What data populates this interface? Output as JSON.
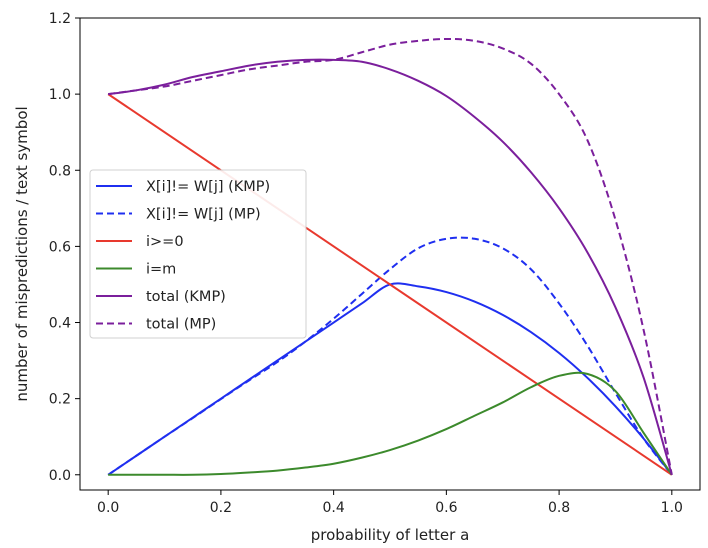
{
  "chart_data": {
    "type": "line",
    "title": "",
    "xlabel": "probability of letter a",
    "ylabel": "number of mispredictions / text symbol",
    "xlim": [
      -0.05,
      1.05
    ],
    "ylim": [
      -0.04,
      1.2
    ],
    "xticks": [
      0.0,
      0.2,
      0.4,
      0.6,
      0.8,
      1.0
    ],
    "xtick_labels": [
      "0.0",
      "0.2",
      "0.4",
      "0.6",
      "0.8",
      "1.0"
    ],
    "yticks": [
      0.0,
      0.2,
      0.4,
      0.6,
      0.8,
      1.0,
      1.2
    ],
    "ytick_labels": [
      "0.0",
      "0.2",
      "0.4",
      "0.6",
      "0.8",
      "1.0",
      "1.2"
    ],
    "grid": false,
    "legend_position": "center-left",
    "x": [
      0.0,
      0.05,
      0.1,
      0.15,
      0.2,
      0.25,
      0.3,
      0.35,
      0.4,
      0.45,
      0.5,
      0.55,
      0.6,
      0.65,
      0.7,
      0.75,
      0.8,
      0.85,
      0.9,
      0.95,
      1.0
    ],
    "series": [
      {
        "name": "X[i]!= W[j] (KMP)",
        "color": "#1f2ff0",
        "dash": "solid",
        "values": [
          0.0,
          0.05,
          0.1,
          0.15,
          0.2,
          0.25,
          0.3,
          0.35,
          0.4,
          0.45,
          0.5,
          0.495,
          0.48,
          0.455,
          0.42,
          0.375,
          0.32,
          0.255,
          0.18,
          0.095,
          0.0
        ]
      },
      {
        "name": "X[i]!= W[j] (MP)",
        "color": "#1f2ff0",
        "dash": "dashed",
        "values": [
          0.0,
          0.05,
          0.1,
          0.149,
          0.199,
          0.248,
          0.296,
          0.35,
          0.41,
          0.475,
          0.54,
          0.595,
          0.62,
          0.62,
          0.595,
          0.54,
          0.45,
          0.34,
          0.215,
          0.095,
          0.0
        ]
      },
      {
        "name": "i>=0",
        "color": "#e8392e",
        "dash": "solid",
        "values": [
          1.0,
          0.95,
          0.9,
          0.85,
          0.8,
          0.75,
          0.7,
          0.65,
          0.6,
          0.55,
          0.5,
          0.45,
          0.4,
          0.35,
          0.3,
          0.25,
          0.2,
          0.15,
          0.1,
          0.05,
          0.0
        ]
      },
      {
        "name": "i=m",
        "color": "#3c8a2c",
        "dash": "solid",
        "values": [
          0.0,
          0.0,
          0.0,
          0.0,
          0.002,
          0.006,
          0.011,
          0.019,
          0.029,
          0.045,
          0.065,
          0.09,
          0.12,
          0.155,
          0.19,
          0.23,
          0.26,
          0.265,
          0.22,
          0.11,
          0.0
        ]
      },
      {
        "name": "total (KMP)",
        "color": "#7b1f9c",
        "dash": "solid",
        "values": [
          1.0,
          1.01,
          1.025,
          1.045,
          1.06,
          1.075,
          1.085,
          1.09,
          1.09,
          1.085,
          1.065,
          1.035,
          0.995,
          0.94,
          0.875,
          0.795,
          0.7,
          0.585,
          0.44,
          0.255,
          0.0
        ]
      },
      {
        "name": "total (MP)",
        "color": "#7b1f9c",
        "dash": "dashed",
        "values": [
          1.0,
          1.01,
          1.02,
          1.035,
          1.05,
          1.065,
          1.075,
          1.085,
          1.09,
          1.11,
          1.13,
          1.14,
          1.145,
          1.14,
          1.12,
          1.08,
          1.0,
          0.88,
          0.67,
          0.38,
          0.0
        ]
      }
    ]
  }
}
